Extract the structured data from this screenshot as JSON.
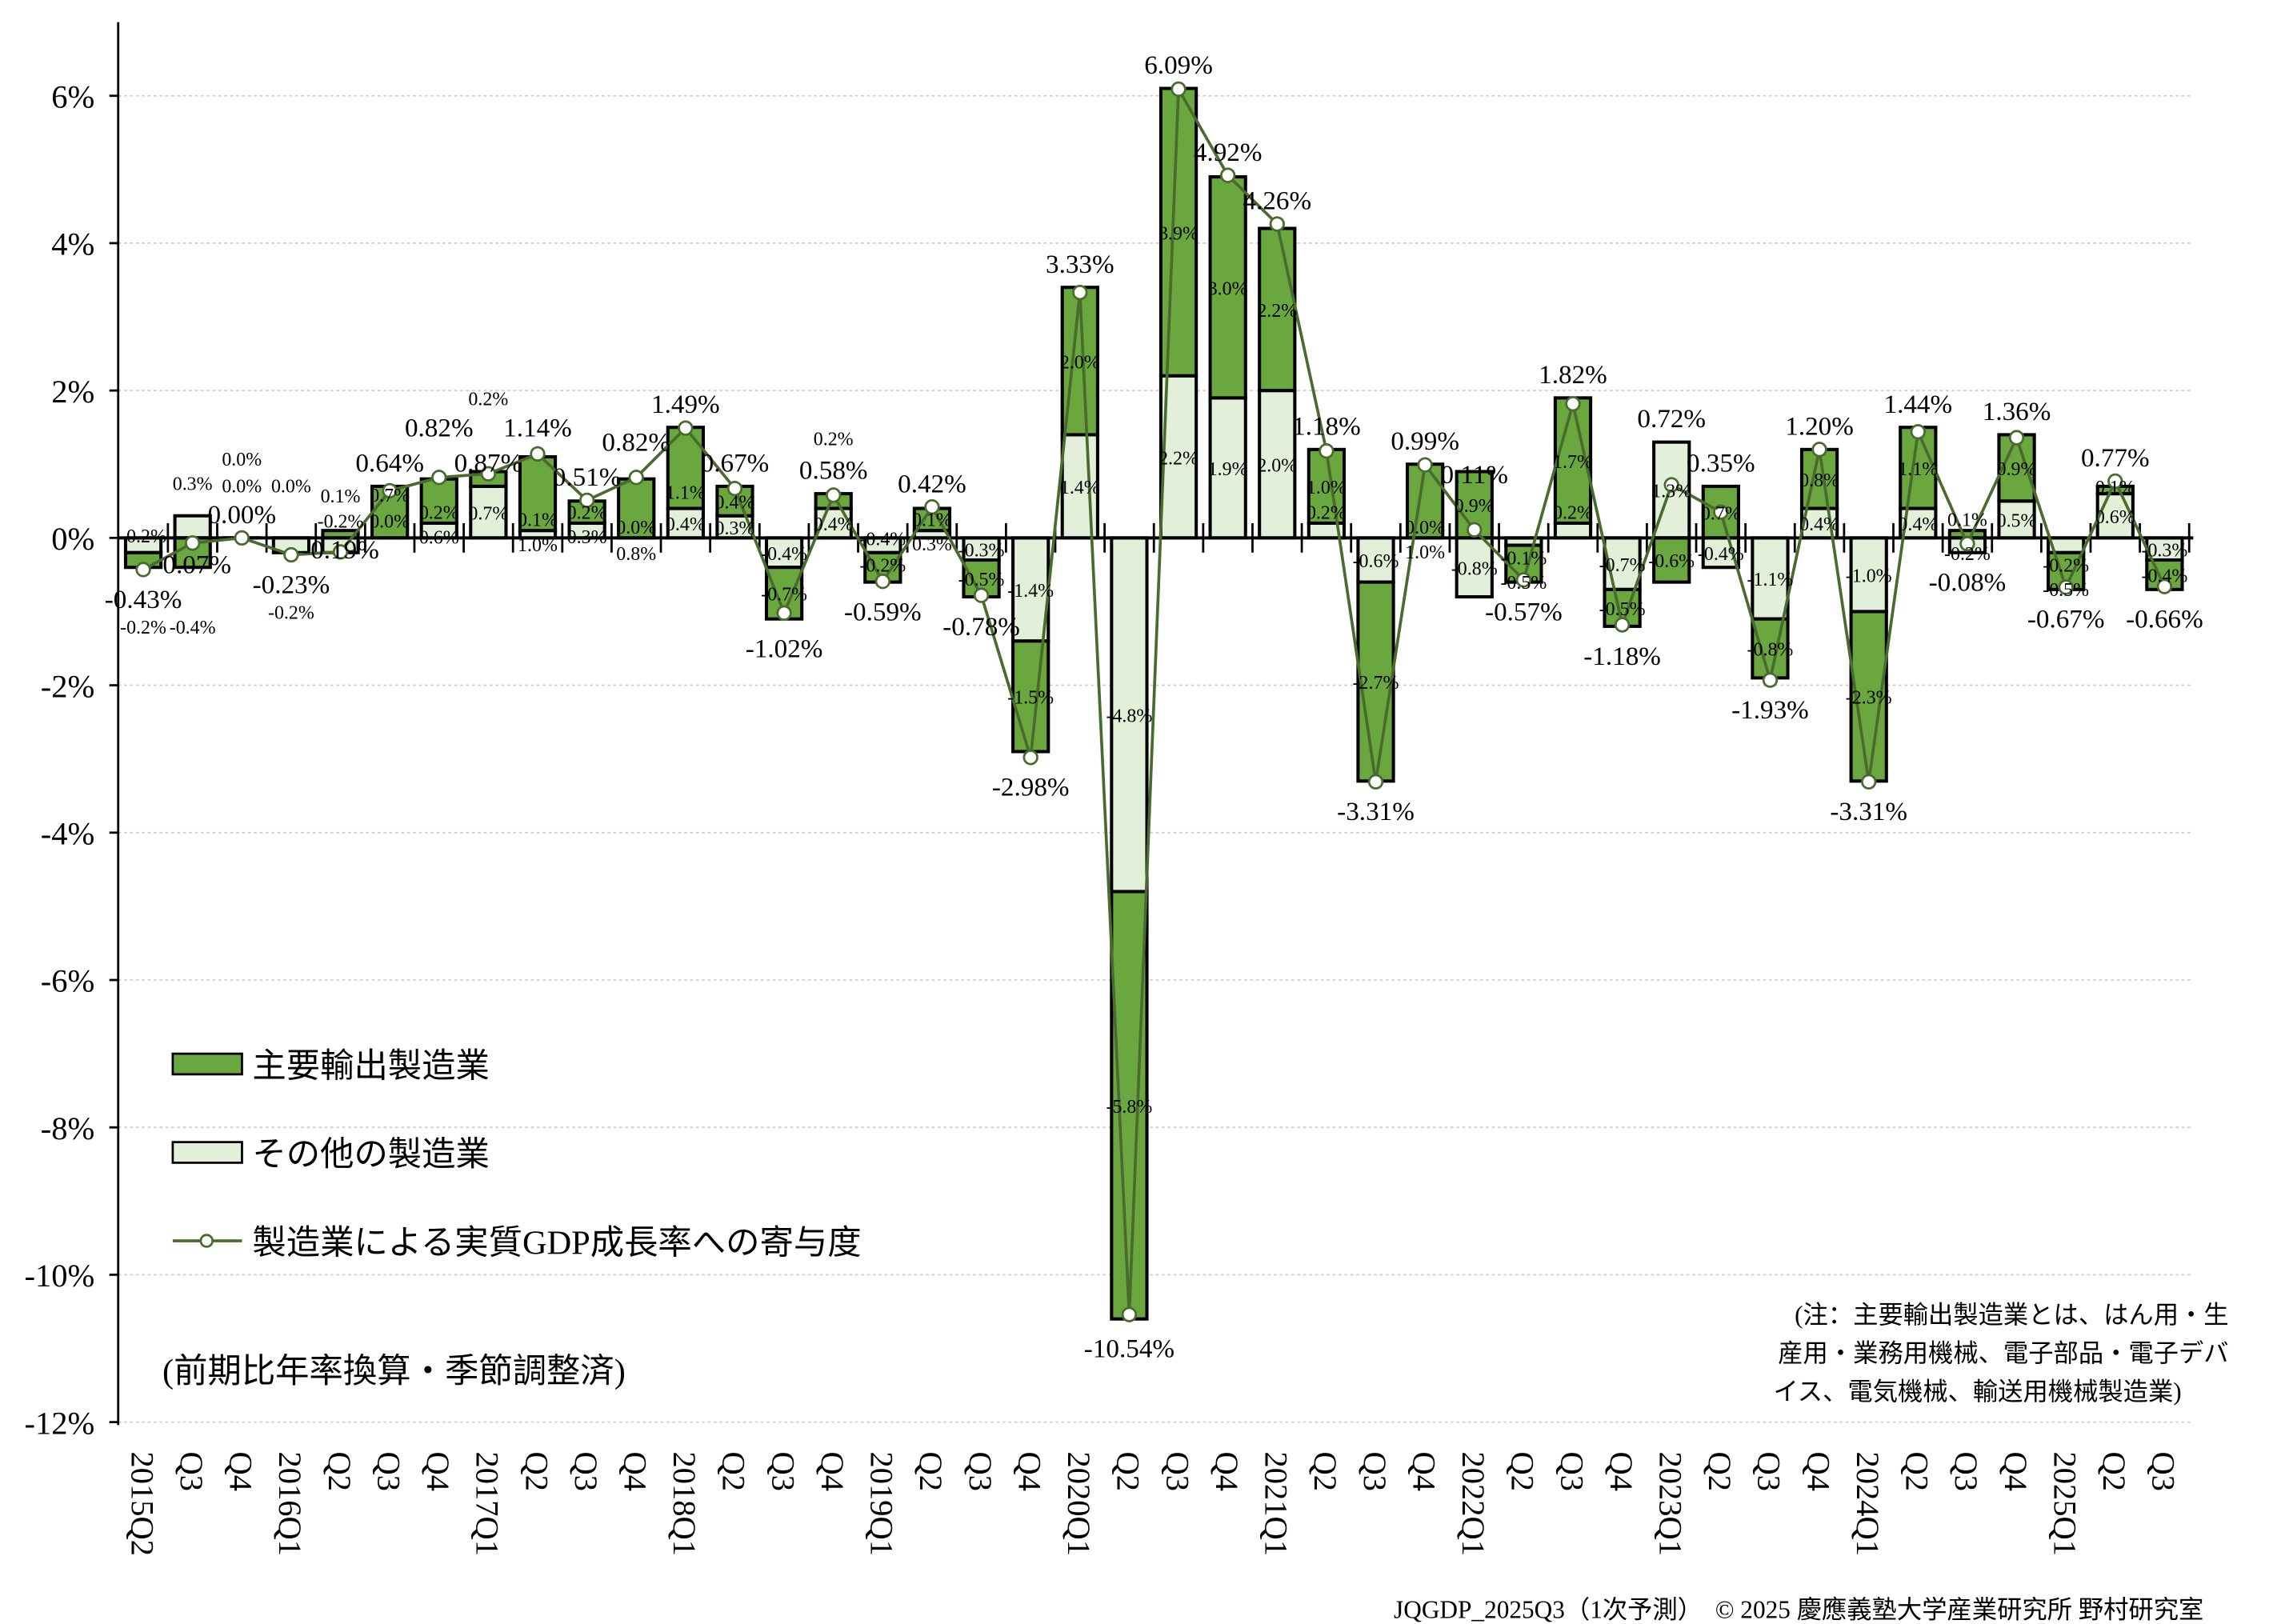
{
  "chart_data": {
    "type": "bar",
    "subtype": "stacked-bar-with-line",
    "categories": [
      "2015Q2",
      "Q3",
      "Q4",
      "2016Q1",
      "Q2",
      "Q3",
      "Q4",
      "2017Q1",
      "Q2",
      "Q3",
      "Q4",
      "2018Q1",
      "Q2",
      "Q3",
      "Q4",
      "2019Q1",
      "Q2",
      "Q3",
      "Q4",
      "2020Q1",
      "Q2",
      "Q3",
      "Q4",
      "2021Q1",
      "Q2",
      "Q3",
      "Q4",
      "2022Q1",
      "Q2",
      "Q3",
      "Q4",
      "2023Q1",
      "Q2",
      "Q3",
      "Q4",
      "2024Q1",
      "Q2",
      "Q3",
      "Q4",
      "2025Q1",
      "Q2",
      "Q3"
    ],
    "series": [
      {
        "name": "主要輸出製造業",
        "kind": "bar",
        "color": "#6aa83f",
        "values": [
          -0.2,
          -0.4,
          0.0,
          0.0,
          0.1,
          0.7,
          0.6,
          0.2,
          1.0,
          0.3,
          0.8,
          1.1,
          0.4,
          -0.7,
          0.2,
          -0.4,
          0.3,
          -0.5,
          -1.5,
          2.0,
          -5.8,
          3.9,
          3.0,
          2.2,
          1.0,
          -2.7,
          1.0,
          0.9,
          -0.5,
          1.7,
          -0.5,
          -0.6,
          0.7,
          -0.8,
          0.8,
          -2.3,
          1.1,
          0.1,
          0.9,
          -0.5,
          0.1,
          -0.4
        ]
      },
      {
        "name": "その他の製造業",
        "kind": "bar",
        "color": "#e2f0d9",
        "values": [
          -0.2,
          0.3,
          0.0,
          -0.2,
          -0.2,
          0.0,
          0.2,
          0.7,
          0.1,
          0.2,
          0.0,
          0.4,
          0.3,
          -0.4,
          0.4,
          -0.2,
          0.1,
          -0.3,
          -1.4,
          1.4,
          -4.8,
          2.2,
          1.9,
          2.0,
          0.2,
          -0.6,
          0.0,
          -0.8,
          -0.1,
          0.2,
          -0.7,
          1.3,
          -0.4,
          -1.1,
          0.4,
          -1.0,
          0.4,
          -0.2,
          0.5,
          -0.2,
          0.6,
          -0.3
        ]
      },
      {
        "name": "製造業による実質GDP成長率への寄与度",
        "kind": "line",
        "color": "#4a6b2e",
        "values": [
          -0.43,
          -0.07,
          0.0,
          -0.23,
          -0.19,
          0.64,
          0.82,
          0.87,
          1.14,
          0.51,
          0.82,
          1.49,
          0.67,
          -1.02,
          0.58,
          -0.59,
          0.42,
          -0.78,
          -2.98,
          3.33,
          -10.54,
          6.09,
          4.92,
          4.26,
          1.18,
          -3.31,
          0.99,
          0.11,
          -0.57,
          1.82,
          -1.18,
          0.72,
          0.35,
          -1.93,
          1.2,
          -3.31,
          1.44,
          -0.08,
          1.36,
          -0.67,
          0.77,
          -0.66
        ]
      }
    ],
    "ylim": [
      -12,
      7
    ],
    "yticks": [
      6,
      4,
      2,
      0,
      -2,
      -4,
      -6,
      -8,
      -10,
      -12
    ],
    "ytick_labels": [
      "6%",
      "4%",
      "2%",
      "0%",
      "-2%",
      "-4%",
      "-6%",
      "-8%",
      "-10%",
      "-12%"
    ],
    "grid": true,
    "legend_position": "bottom-left",
    "annotation_unit": "(前期比年率換算・季節調整済)",
    "note": [
      "(注：主要輸出製造業とは、はん用・生",
      "産用・業務用機械、電子部品・電子デバ",
      "イス、電気機械、輸送用機械製造業)"
    ],
    "footer": "JQGDP_2025Q3（1次予測）　© 2025 慶應義塾大学産業研究所 野村研究室"
  }
}
